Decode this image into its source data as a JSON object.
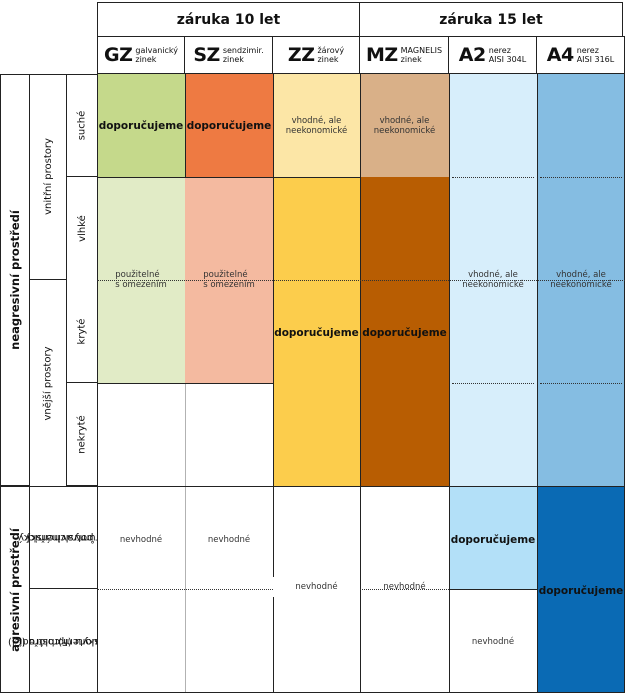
{
  "header": {
    "warranty_10": "záruka 10 let",
    "warranty_15": "záruka 15 let",
    "columns": [
      {
        "code": "GZ",
        "sub1": "galvanický",
        "sub2": "zinek"
      },
      {
        "code": "SZ",
        "sub1": "sendzimir.",
        "sub2": "zinek"
      },
      {
        "code": "ZZ",
        "sub1": "žárový",
        "sub2": "zinek"
      },
      {
        "code": "MZ",
        "sub1": "MAGNELIS",
        "sub2": "zinek"
      },
      {
        "code": "A2",
        "sub1": "nerez",
        "sub2": "AISI 304L"
      },
      {
        "code": "A4",
        "sub1": "nerez",
        "sub2": "AISI 316L"
      }
    ]
  },
  "rows": {
    "group_nonaggressive": "neagresivní prostředí",
    "group_aggressive": "agresivní prostředí",
    "indoor": "vnitřní prostory",
    "outdoor": "vnější prostory",
    "dry": "suché",
    "humid": "vlhké",
    "covered": "kryté",
    "uncovered": "nekryté",
    "chemical_l1": "chemický",
    "chemical_l2": "a potravinářský",
    "chemical_l3": "průmysl",
    "chloride_l1": "prostředí",
    "chloride_l2": "s výskytem chlóru (Cl)",
    "chloride_l3": "a fluoru (F)"
  },
  "cells": {
    "recommend": "doporučujeme",
    "suitable_l1": "vhodné, ale",
    "suitable_l2": "neekonomické",
    "limited_l1": "použitelné",
    "limited_l2": "s omezením",
    "unsuitable": "nevhodné"
  },
  "colors": {
    "gz_strong": "#c5d98b",
    "gz_light": "#e1ebc6",
    "sz_strong": "#ee7a42",
    "sz_light": "#f4baa0",
    "zz_light": "#fce6a6",
    "zz_strong": "#fccd4c",
    "mz_light": "#d9b088",
    "mz_strong": "#b85d02",
    "a2_light": "#d7eefb",
    "a2_mid": "#b3e0f8",
    "a4_light": "#85bde2",
    "a4_strong": "#0a6ab4"
  }
}
